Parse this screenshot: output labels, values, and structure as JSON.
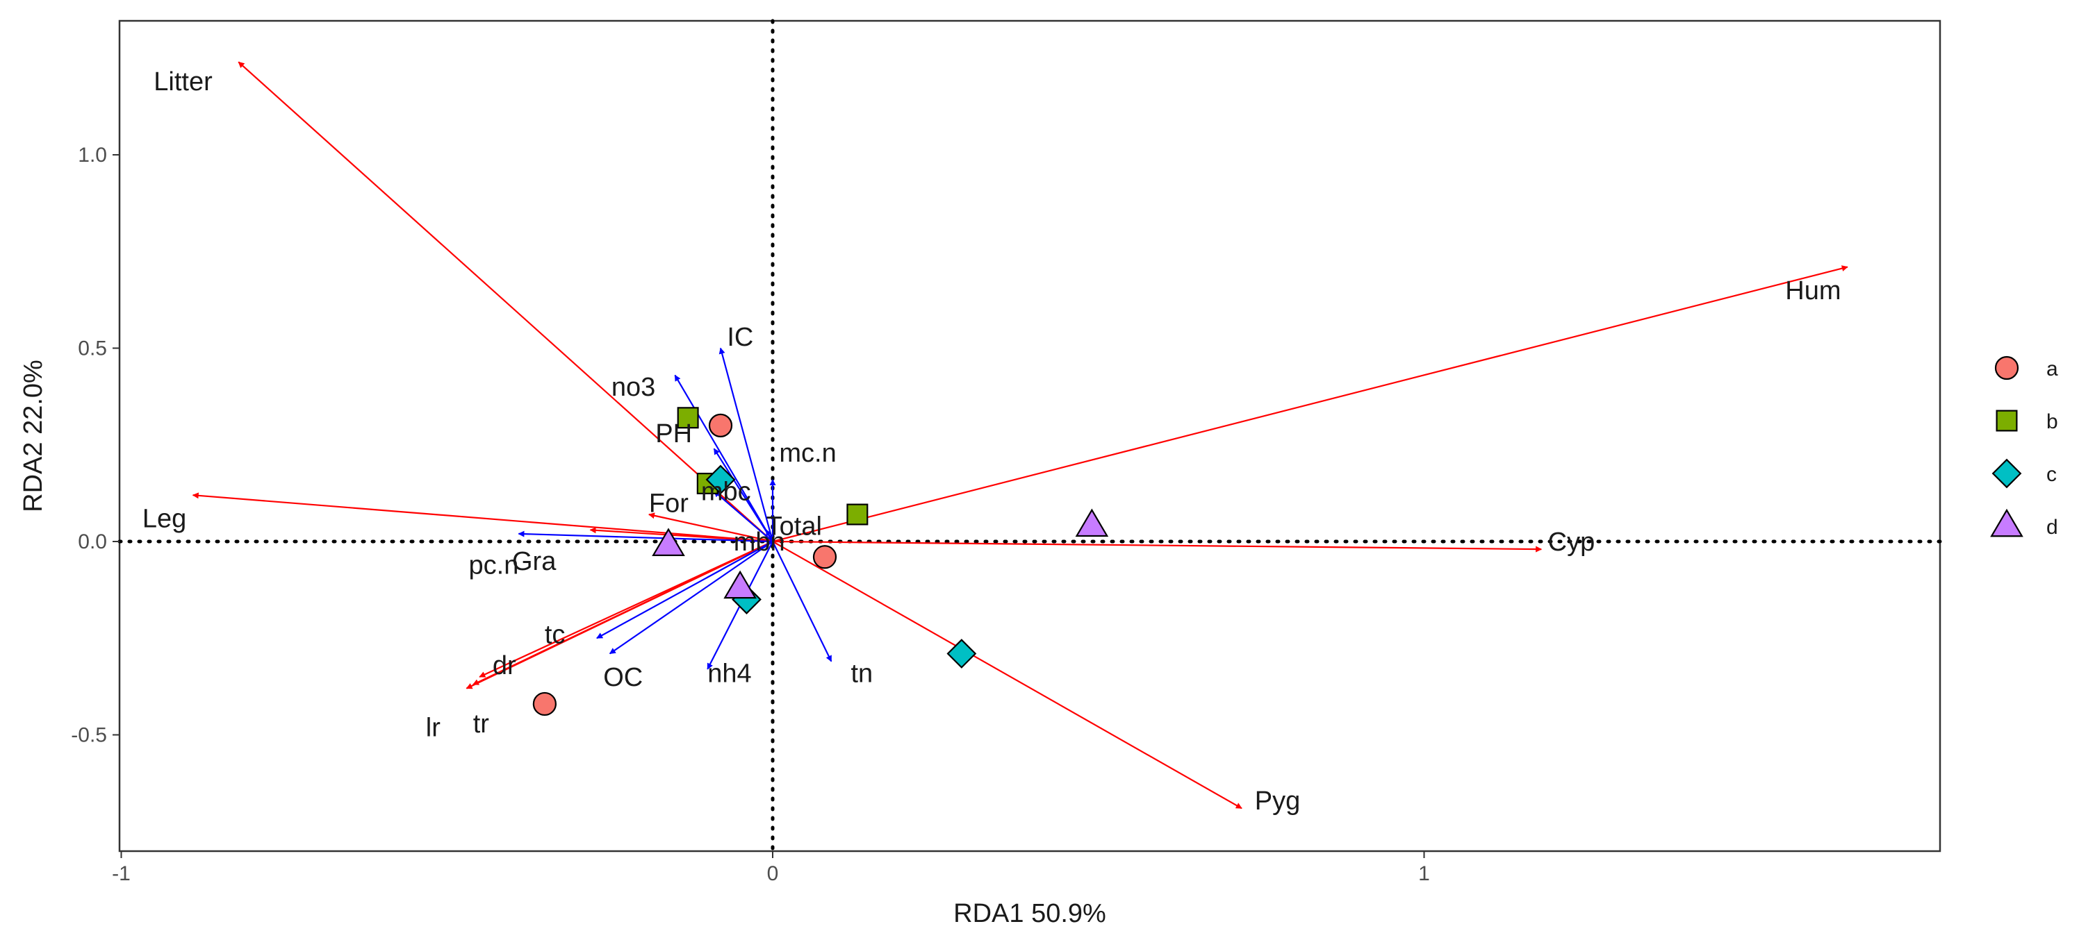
{
  "chart_data": {
    "type": "scatter",
    "subtype": "rda-biplot",
    "title": "",
    "xlabel": "RDA1 50.9%",
    "ylabel": "RDA2 22.0%",
    "xlim": [
      -1.02,
      1.79
    ],
    "ylim": [
      -0.79,
      1.35
    ],
    "xticks": [
      -1,
      0,
      1
    ],
    "xtick_labels": [
      "-1",
      "0",
      "1"
    ],
    "yticks": [
      -0.5,
      0.0,
      0.5,
      1.0
    ],
    "ytick_labels": [
      "-0.5",
      "0.0",
      "0.5",
      "1.0"
    ],
    "grid": false,
    "reference_lines": {
      "x": 0,
      "y": 0,
      "style": "dotted"
    },
    "colors": {
      "species_arrow": "#ff0000",
      "env_arrow": "#0000ff",
      "a": "#f8766d",
      "b": "#7cae00",
      "c": "#00bfc4",
      "d": "#c77cff"
    },
    "species_arrows": [
      {
        "name": "Litter",
        "x": -0.82,
        "y": 1.24,
        "lx": -0.86,
        "ly": 1.19,
        "anchor": "end"
      },
      {
        "name": "Hum",
        "x": 1.65,
        "y": 0.71,
        "lx": 1.64,
        "ly": 0.65,
        "anchor": "end"
      },
      {
        "name": "Leg",
        "x": -0.89,
        "y": 0.12,
        "lx": -0.9,
        "ly": 0.06,
        "anchor": "end"
      },
      {
        "name": "Cyp",
        "x": 1.18,
        "y": -0.02,
        "lx": 1.19,
        "ly": 0.0,
        "anchor": "start"
      },
      {
        "name": "Pyg",
        "x": 0.72,
        "y": -0.69,
        "lx": 0.74,
        "ly": -0.67,
        "anchor": "start"
      },
      {
        "name": "For",
        "x": -0.19,
        "y": 0.07,
        "lx": -0.19,
        "ly": 0.1,
        "anchor": "start"
      },
      {
        "name": "Gra",
        "x": -0.28,
        "y": 0.03,
        "lx": -0.4,
        "ly": -0.05,
        "anchor": "start"
      },
      {
        "name": "lr",
        "x": -0.47,
        "y": -0.38,
        "lx": -0.51,
        "ly": -0.48,
        "anchor": "end"
      },
      {
        "name": "tr",
        "x": -0.46,
        "y": -0.37,
        "lx": -0.46,
        "ly": -0.47,
        "anchor": "start"
      },
      {
        "name": "dr",
        "x": -0.45,
        "y": -0.35,
        "lx": -0.43,
        "ly": -0.32,
        "anchor": "start"
      },
      {
        "name": "Total",
        "x": -0.01,
        "y": 0.01,
        "lx": -0.01,
        "ly": 0.04,
        "anchor": "start"
      }
    ],
    "env_arrows": [
      {
        "name": "IC",
        "x": -0.08,
        "y": 0.5,
        "lx": -0.07,
        "ly": 0.53,
        "anchor": "start"
      },
      {
        "name": "no3",
        "x": -0.15,
        "y": 0.43,
        "lx": -0.18,
        "ly": 0.4,
        "anchor": "end"
      },
      {
        "name": "PH",
        "x": -0.09,
        "y": 0.24,
        "lx": -0.18,
        "ly": 0.28,
        "anchor": "start"
      },
      {
        "name": "mc.n",
        "x": 0.0,
        "y": 0.16,
        "lx": 0.01,
        "ly": 0.23,
        "anchor": "start"
      },
      {
        "name": "mbc",
        "x": -0.09,
        "y": 0.13,
        "lx": -0.11,
        "ly": 0.13,
        "anchor": "start"
      },
      {
        "name": "mbn",
        "x": -0.01,
        "y": 0.03,
        "lx": -0.06,
        "ly": 0.0,
        "anchor": "start"
      },
      {
        "name": "pc.n",
        "x": -0.39,
        "y": 0.02,
        "lx": -0.39,
        "ly": -0.06,
        "anchor": "end"
      },
      {
        "name": "tc",
        "x": -0.27,
        "y": -0.25,
        "lx": -0.35,
        "ly": -0.24,
        "anchor": "start"
      },
      {
        "name": "OC",
        "x": -0.25,
        "y": -0.29,
        "lx": -0.26,
        "ly": -0.35,
        "anchor": "start"
      },
      {
        "name": "nh4",
        "x": -0.1,
        "y": -0.33,
        "lx": -0.1,
        "ly": -0.34,
        "anchor": "start"
      },
      {
        "name": "tn",
        "x": 0.09,
        "y": -0.31,
        "lx": 0.12,
        "ly": -0.34,
        "anchor": "start"
      }
    ],
    "points": [
      {
        "group": "a",
        "x": -0.08,
        "y": 0.3
      },
      {
        "group": "a",
        "x": 0.08,
        "y": -0.04
      },
      {
        "group": "a",
        "x": -0.35,
        "y": -0.42
      },
      {
        "group": "b",
        "x": -0.13,
        "y": 0.32
      },
      {
        "group": "b",
        "x": -0.1,
        "y": 0.15
      },
      {
        "group": "b",
        "x": 0.13,
        "y": 0.07
      },
      {
        "group": "c",
        "x": -0.08,
        "y": 0.16
      },
      {
        "group": "c",
        "x": -0.04,
        "y": -0.15
      },
      {
        "group": "c",
        "x": 0.29,
        "y": -0.29
      },
      {
        "group": "d",
        "x": -0.16,
        "y": -0.01
      },
      {
        "group": "d",
        "x": -0.05,
        "y": -0.12
      },
      {
        "group": "d",
        "x": 0.49,
        "y": 0.04
      }
    ],
    "legend": {
      "position": "right",
      "entries": [
        {
          "label": "a",
          "shape": "circle",
          "color": "#f8766d"
        },
        {
          "label": "b",
          "shape": "square",
          "color": "#7cae00"
        },
        {
          "label": "c",
          "shape": "diamond",
          "color": "#00bfc4"
        },
        {
          "label": "d",
          "shape": "triangle",
          "color": "#c77cff"
        }
      ]
    }
  }
}
